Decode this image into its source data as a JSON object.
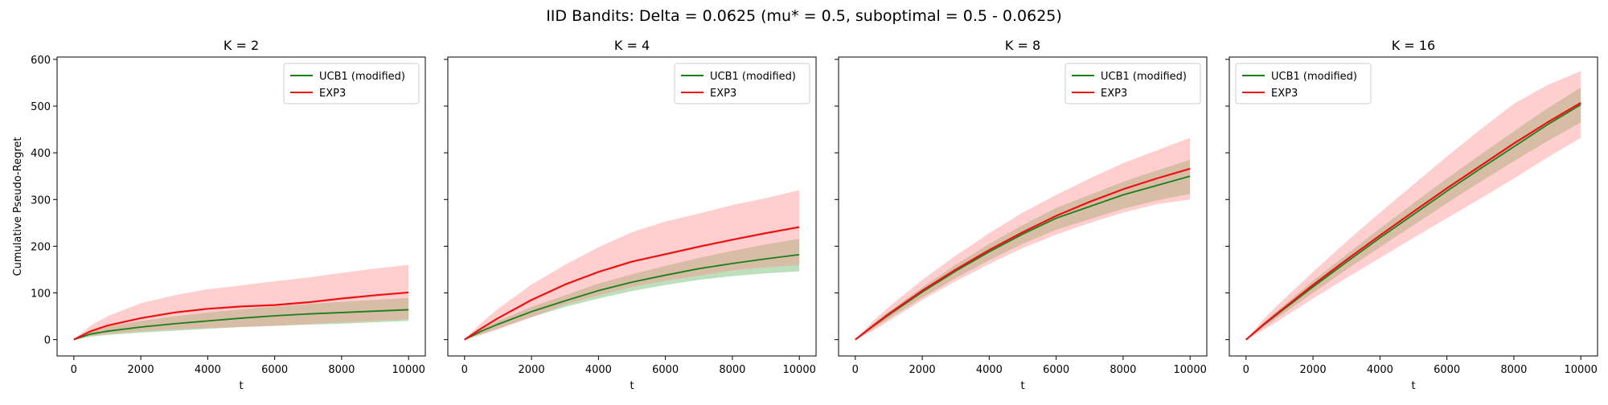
{
  "figure": {
    "title": "IID Bandits: Delta = 0.0625 (mu* = 0.5, suboptimal = 0.5 - 0.0625)"
  },
  "colors": {
    "ucb": "#1a7f1a",
    "ucb_band": "#2ca02c",
    "exp3": "#ee1111",
    "exp3_band": "#ff8a8a"
  },
  "chart_data": [
    {
      "type": "line",
      "title": "K = 2",
      "xlabel": "t",
      "ylabel": "Cumulative Pseudo-Regret",
      "xlim": [
        -500,
        10500
      ],
      "ylim": [
        -35,
        605
      ],
      "xticks": [
        0,
        2000,
        4000,
        6000,
        8000,
        10000
      ],
      "yticks": [
        0,
        100,
        200,
        300,
        400,
        500,
        600
      ],
      "legend": "top-right",
      "grid": false,
      "x": [
        0,
        500,
        1000,
        2000,
        3000,
        4000,
        5000,
        6000,
        7000,
        8000,
        9000,
        10000
      ],
      "series": [
        {
          "name": "UCB1 (modified)",
          "color_key": "ucb",
          "band_key": "ucb_band",
          "mean": [
            0,
            12,
            18,
            27,
            34,
            40,
            46,
            51,
            55,
            58,
            61,
            64
          ],
          "lower": [
            0,
            6,
            10,
            15,
            19,
            23,
            27,
            30,
            32,
            34,
            37,
            40
          ],
          "upper": [
            0,
            18,
            28,
            40,
            50,
            58,
            65,
            71,
            76,
            81,
            85,
            89
          ]
        },
        {
          "name": "EXP3",
          "color_key": "exp3",
          "band_key": "exp3_band",
          "mean": [
            0,
            18,
            30,
            46,
            58,
            66,
            71,
            74,
            80,
            88,
            95,
            101
          ],
          "lower": [
            0,
            8,
            12,
            18,
            22,
            25,
            27,
            29,
            33,
            37,
            40,
            44
          ],
          "upper": [
            0,
            30,
            50,
            78,
            95,
            108,
            116,
            125,
            133,
            143,
            152,
            160
          ]
        }
      ]
    },
    {
      "type": "line",
      "title": "K = 4",
      "xlabel": "t",
      "ylabel": "",
      "xlim": [
        -500,
        10500
      ],
      "ylim": [
        -35,
        605
      ],
      "xticks": [
        0,
        2000,
        4000,
        6000,
        8000,
        10000
      ],
      "yticks": [
        0,
        100,
        200,
        300,
        400,
        500,
        600
      ],
      "legend": "top-right",
      "grid": false,
      "x": [
        0,
        500,
        1000,
        2000,
        3000,
        4000,
        5000,
        6000,
        7000,
        8000,
        9000,
        10000
      ],
      "series": [
        {
          "name": "UCB1 (modified)",
          "color_key": "ucb",
          "band_key": "ucb_band",
          "mean": [
            0,
            18,
            33,
            60,
            83,
            105,
            123,
            138,
            152,
            163,
            173,
            182
          ],
          "lower": [
            0,
            12,
            24,
            48,
            70,
            88,
            104,
            117,
            128,
            136,
            142,
            146
          ],
          "upper": [
            0,
            22,
            40,
            70,
            95,
            120,
            140,
            158,
            175,
            190,
            204,
            216
          ]
        },
        {
          "name": "EXP3",
          "color_key": "exp3",
          "band_key": "exp3_band",
          "mean": [
            0,
            24,
            46,
            85,
            118,
            145,
            167,
            183,
            199,
            214,
            228,
            241
          ],
          "lower": [
            0,
            10,
            22,
            48,
            75,
            95,
            113,
            126,
            137,
            148,
            155,
            160
          ],
          "upper": [
            0,
            36,
            66,
            118,
            160,
            198,
            230,
            253,
            270,
            288,
            303,
            320
          ]
        }
      ]
    },
    {
      "type": "line",
      "title": "K = 8",
      "xlabel": "t",
      "ylabel": "",
      "xlim": [
        -500,
        10500
      ],
      "ylim": [
        -35,
        605
      ],
      "xticks": [
        0,
        2000,
        4000,
        6000,
        8000,
        10000
      ],
      "yticks": [
        0,
        100,
        200,
        300,
        400,
        500,
        600
      ],
      "legend": "top-right",
      "grid": false,
      "x": [
        0,
        500,
        1000,
        2000,
        3000,
        4000,
        5000,
        6000,
        7000,
        8000,
        9000,
        10000
      ],
      "series": [
        {
          "name": "UCB1 (modified)",
          "color_key": "ucb",
          "band_key": "ucb_band",
          "mean": [
            0,
            27,
            53,
            102,
            147,
            188,
            226,
            260,
            285,
            310,
            330,
            350
          ],
          "lower": [
            0,
            22,
            45,
            90,
            132,
            170,
            205,
            235,
            258,
            280,
            298,
            312
          ],
          "upper": [
            0,
            32,
            60,
            112,
            160,
            205,
            245,
            282,
            310,
            338,
            362,
            385
          ]
        },
        {
          "name": "EXP3",
          "color_key": "exp3",
          "band_key": "exp3_band",
          "mean": [
            0,
            28,
            55,
            105,
            150,
            192,
            230,
            265,
            295,
            322,
            345,
            366
          ],
          "lower": [
            0,
            18,
            40,
            85,
            125,
            162,
            196,
            225,
            250,
            272,
            290,
            300
          ],
          "upper": [
            0,
            38,
            70,
            128,
            180,
            228,
            272,
            310,
            345,
            378,
            405,
            432
          ]
        }
      ]
    },
    {
      "type": "line",
      "title": "K = 16",
      "xlabel": "t",
      "ylabel": "",
      "xlim": [
        -500,
        10500
      ],
      "ylim": [
        -35,
        605
      ],
      "xticks": [
        0,
        2000,
        4000,
        6000,
        8000,
        10000
      ],
      "yticks": [
        0,
        100,
        200,
        300,
        400,
        500,
        600
      ],
      "legend": "top-left",
      "grid": false,
      "x": [
        0,
        500,
        1000,
        2000,
        3000,
        4000,
        5000,
        6000,
        7000,
        8000,
        9000,
        10000
      ],
      "series": [
        {
          "name": "UCB1 (modified)",
          "color_key": "ucb",
          "band_key": "ucb_band",
          "mean": [
            0,
            30,
            58,
            113,
            166,
            218,
            268,
            318,
            366,
            413,
            460,
            503
          ],
          "lower": [
            0,
            25,
            50,
            100,
            150,
            198,
            245,
            292,
            338,
            382,
            425,
            465
          ],
          "upper": [
            0,
            35,
            66,
            126,
            182,
            238,
            292,
            345,
            396,
            446,
            495,
            540
          ]
        },
        {
          "name": "EXP3",
          "color_key": "exp3",
          "band_key": "exp3_band",
          "mean": [
            0,
            31,
            60,
            117,
            171,
            223,
            274,
            324,
            372,
            420,
            465,
            507
          ],
          "lower": [
            0,
            20,
            42,
            88,
            132,
            175,
            218,
            260,
            302,
            345,
            390,
            432
          ],
          "upper": [
            0,
            42,
            78,
            145,
            210,
            272,
            332,
            392,
            450,
            505,
            545,
            575
          ]
        }
      ]
    }
  ]
}
